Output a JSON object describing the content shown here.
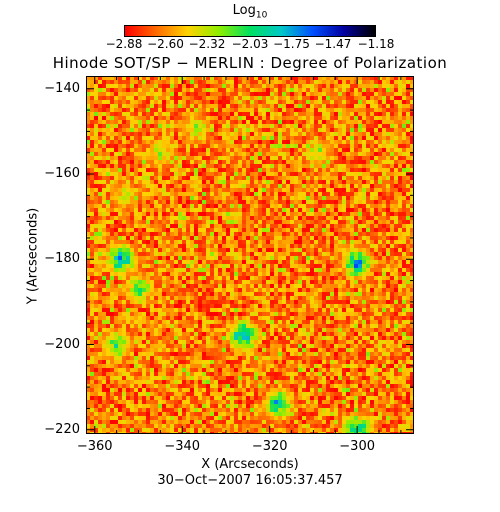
{
  "colorbar": {
    "label_base": "Log",
    "label_sub": "10",
    "ticks": [
      "−2.88",
      "−2.60",
      "−2.32",
      "−2.03",
      "−1.75",
      "−1.47",
      "−1.18"
    ],
    "range": [
      -2.88,
      -1.18
    ],
    "colormap": [
      "#ff0000",
      "#ff6a00",
      "#ffd200",
      "#90ee00",
      "#00e060",
      "#00c8c8",
      "#0050ff",
      "#0000a0",
      "#000000"
    ]
  },
  "chart_data": {
    "type": "heatmap",
    "title": "Hinode SOT/SP − MERLIN : Degree of Polarization",
    "xlabel": "X (Arcseconds)",
    "ylabel": "Y (Arcseconds)",
    "xlim": [
      -362,
      -287
    ],
    "ylim": [
      -221,
      -137
    ],
    "x_ticks": [
      -360,
      -340,
      -320,
      -300
    ],
    "y_ticks": [
      -140,
      -160,
      -180,
      -200,
      -220
    ],
    "x_tick_labels": [
      "−360",
      "−340",
      "−320",
      "−300"
    ],
    "y_tick_labels": [
      "−140",
      "−160",
      "−180",
      "−200",
      "−220"
    ],
    "value_range": [
      -2.88,
      -1.18
    ],
    "high_polarization_regions": [
      {
        "x": -337,
        "y": -149,
        "value": -2.1
      },
      {
        "x": -345,
        "y": -155,
        "value": -2.1
      },
      {
        "x": -354,
        "y": -180,
        "value": -1.5
      },
      {
        "x": -350,
        "y": -187,
        "value": -1.9
      },
      {
        "x": -326,
        "y": -198,
        "value": -1.4
      },
      {
        "x": -300,
        "y": -181,
        "value": -1.5
      },
      {
        "x": -318,
        "y": -214,
        "value": -1.6
      },
      {
        "x": -300,
        "y": -220,
        "value": -1.5
      },
      {
        "x": -309,
        "y": -155,
        "value": -2.1
      },
      {
        "x": -353,
        "y": -165,
        "value": -2.2
      },
      {
        "x": -355,
        "y": -200,
        "value": -1.9
      }
    ]
  },
  "footer": {
    "date": "30−Oct−2007 16:05:37.457"
  }
}
